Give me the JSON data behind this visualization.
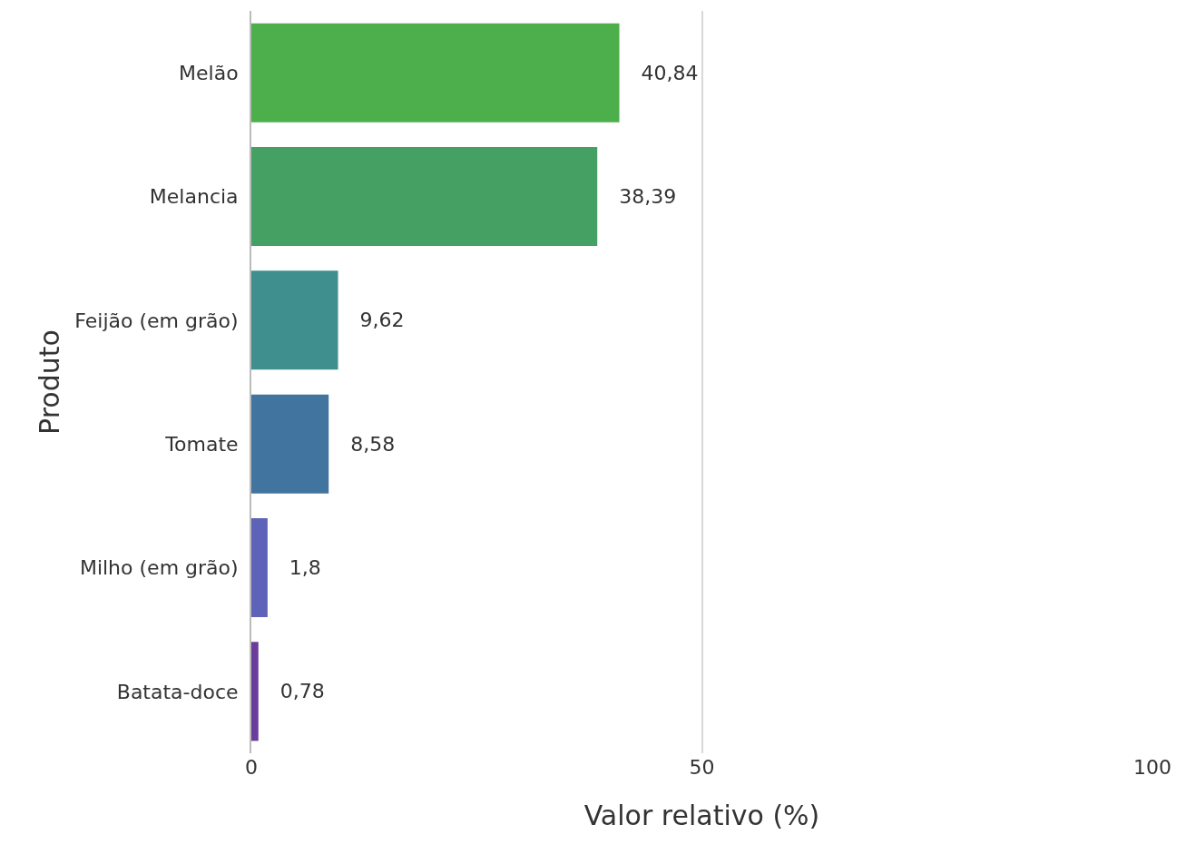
{
  "chart_data": {
    "type": "bar",
    "orientation": "horizontal",
    "xlabel": "Valor relativo (%)",
    "ylabel": "Produto",
    "categories": [
      "Melão",
      "Melancia",
      "Feijão (em grão)",
      "Tomate",
      "Milho (em grão)",
      "Batata-doce"
    ],
    "values": [
      40.84,
      38.39,
      9.62,
      8.58,
      1.8,
      0.78
    ],
    "colors": [
      "#4caf4c",
      "#45a063",
      "#3f8f8f",
      "#4274a0",
      "#5c63b8",
      "#6a3d9a"
    ],
    "value_labels": [
      "40,84",
      "38,39",
      "9,62",
      "8,58",
      "1,8",
      "0,78"
    ],
    "xlim": [
      0,
      100
    ],
    "xticks": [
      0,
      50,
      100
    ],
    "grid": "x"
  }
}
